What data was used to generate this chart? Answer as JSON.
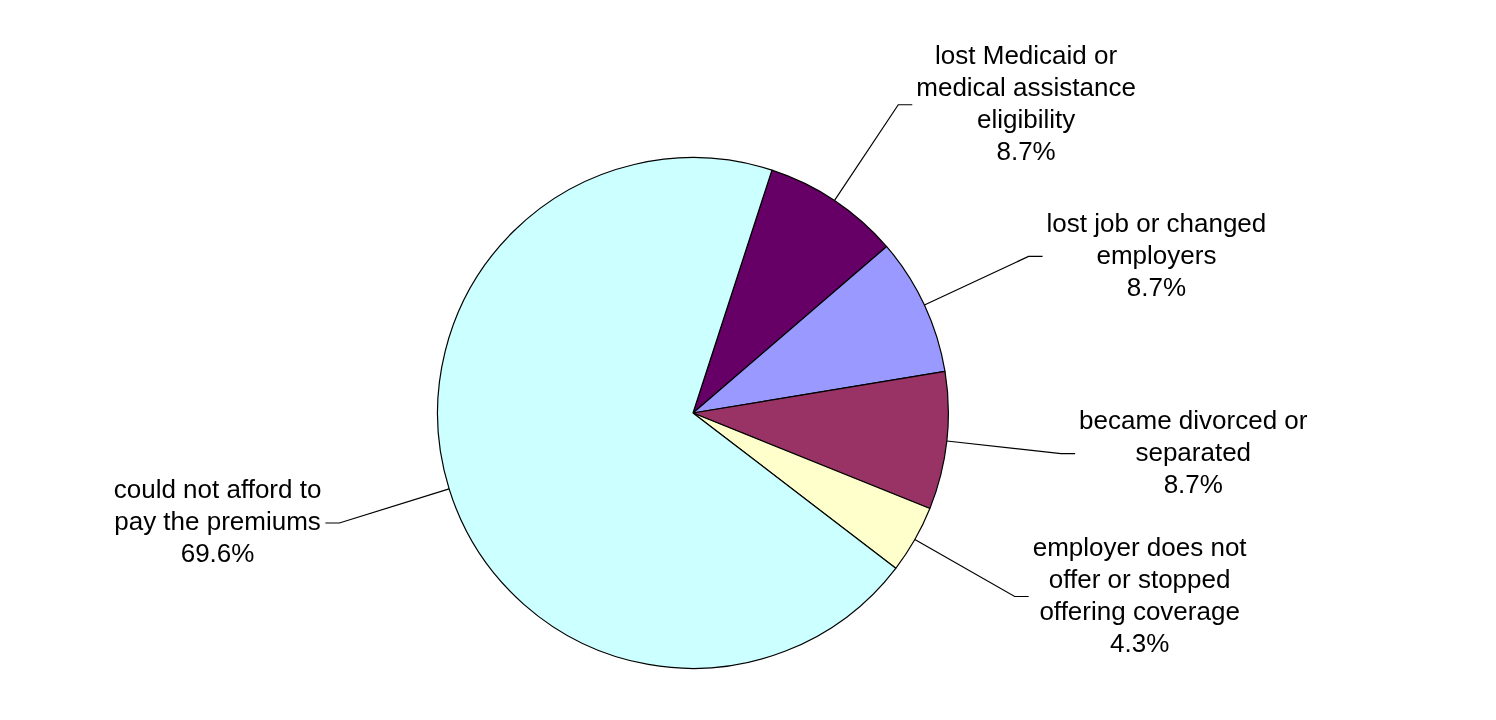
{
  "chart_data": {
    "type": "pie",
    "categories": [
      "lost Medicaid or medical assistance eligibility",
      "lost job or changed employers",
      "became divorced or separated",
      "employer does not offer or stopped offering coverage",
      "could not afford to pay the premiums"
    ],
    "values": [
      8.7,
      8.7,
      8.7,
      4.3,
      69.6
    ],
    "value_labels": [
      "8.7%",
      "8.7%",
      "8.7%",
      "4.3%",
      "69.6%"
    ],
    "colors": [
      "#660066",
      "#9999ff",
      "#993366",
      "#ffffcc",
      "#ccffff"
    ],
    "legend": false
  }
}
